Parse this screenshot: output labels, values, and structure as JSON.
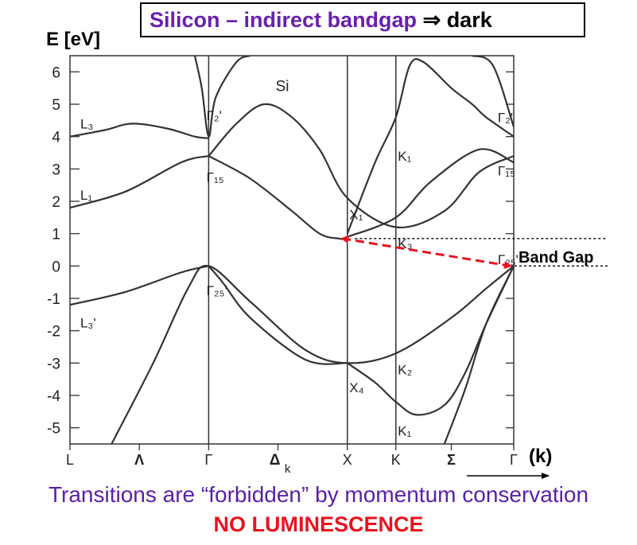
{
  "title": {
    "part1": "Silicon – indirect bandgap ",
    "arrow": "⇒",
    "part2": " dark"
  },
  "caption": {
    "line1": "Transitions are “forbidden” by momentum conservation",
    "line2": "NO LUMINESCENCE"
  },
  "colors": {
    "title_purple": "#6a1fb0",
    "caption_purple": "#5a1fa8",
    "caption_red": "#e8141e",
    "arrow_red": "#e8141e",
    "curves": "#333333"
  },
  "chart_data": {
    "type": "line",
    "title": "",
    "material_label": "Si",
    "ylabel": "E [eV]",
    "xlabel": "(k)",
    "ylim": [
      -5.5,
      6.5
    ],
    "y_ticks": [
      6,
      5,
      4,
      3,
      2,
      1,
      0,
      -1,
      -2,
      -3,
      -4,
      -5
    ],
    "k_points": [
      "L",
      "Λ",
      "Γ",
      "Δk",
      "X",
      "K",
      "Σ",
      "Γ"
    ],
    "k_positions": [
      0,
      0.5,
      1.0,
      1.5,
      2.0,
      2.35,
      2.75,
      3.2
    ],
    "symmetry_lines_at": [
      1.0,
      2.0,
      2.35
    ],
    "series": [
      {
        "points": [
          [
            0,
            4.0
          ],
          [
            0.25,
            4.2
          ],
          [
            0.45,
            4.4
          ],
          [
            0.7,
            4.25
          ],
          [
            0.9,
            4.0
          ],
          [
            1.0,
            3.95
          ]
        ]
      },
      {
        "points": [
          [
            0,
            1.8
          ],
          [
            0.4,
            2.3
          ],
          [
            0.8,
            3.2
          ],
          [
            1.0,
            3.4
          ]
        ]
      },
      {
        "points": [
          [
            0,
            -1.2
          ],
          [
            0.4,
            -0.8
          ],
          [
            0.8,
            -0.2
          ],
          [
            1.0,
            0.0
          ]
        ]
      },
      {
        "points": [
          [
            0.3,
            -5.5
          ],
          [
            0.6,
            -3.0
          ],
          [
            0.85,
            -0.7
          ],
          [
            1.0,
            0.0
          ],
          [
            1.3,
            -1.1
          ],
          [
            1.7,
            -2.6
          ],
          [
            2.0,
            -3.0
          ],
          [
            2.35,
            -2.7
          ],
          [
            2.75,
            -1.6
          ],
          [
            3.0,
            -0.7
          ],
          [
            3.2,
            0.0
          ]
        ]
      },
      {
        "points": [
          [
            1.0,
            0.0
          ],
          [
            1.1,
            -0.5
          ],
          [
            1.3,
            -1.6
          ],
          [
            1.7,
            -2.9
          ],
          [
            2.0,
            -3.0
          ]
        ]
      },
      {
        "points": [
          [
            1.0,
            3.4
          ],
          [
            1.3,
            2.7
          ],
          [
            1.6,
            1.7
          ],
          [
            1.8,
            1.0
          ],
          [
            1.94,
            0.85
          ],
          [
            2.0,
            0.9
          ],
          [
            2.35,
            1.5
          ],
          [
            2.6,
            2.6
          ],
          [
            2.95,
            3.6
          ],
          [
            3.2,
            3.2
          ]
        ]
      },
      {
        "points": [
          [
            1.0,
            3.4
          ],
          [
            1.2,
            4.4
          ],
          [
            1.4,
            5.0
          ],
          [
            1.6,
            4.6
          ],
          [
            1.8,
            3.6
          ],
          [
            2.0,
            2.1
          ],
          [
            2.35,
            1.2
          ],
          [
            2.7,
            1.7
          ],
          [
            2.95,
            2.9
          ],
          [
            3.2,
            3.4
          ]
        ]
      },
      {
        "points": [
          [
            0.9,
            6.5
          ],
          [
            0.95,
            5.5
          ],
          [
            1.0,
            4.0
          ],
          [
            1.05,
            5.2
          ],
          [
            1.2,
            6.3
          ],
          [
            1.3,
            6.5
          ]
        ]
      },
      {
        "points": [
          [
            2.0,
            1.0
          ],
          [
            2.2,
            3.2
          ],
          [
            2.35,
            4.6
          ],
          [
            2.45,
            6.2
          ],
          [
            2.55,
            6.3
          ],
          [
            2.75,
            5.5
          ],
          [
            2.9,
            5.0
          ],
          [
            3.0,
            4.6
          ],
          [
            3.2,
            4.0
          ]
        ]
      },
      {
        "points": [
          [
            2.9,
            6.5
          ],
          [
            3.05,
            6.2
          ],
          [
            3.2,
            4.3
          ]
        ]
      },
      {
        "points": [
          [
            2.0,
            -3.0
          ],
          [
            2.2,
            -3.6
          ],
          [
            2.35,
            -4.2
          ],
          [
            2.5,
            -4.6
          ],
          [
            2.7,
            -4.3
          ],
          [
            2.85,
            -3.3
          ],
          [
            3.0,
            -1.8
          ],
          [
            3.2,
            0.0
          ]
        ]
      },
      {
        "points": [
          [
            2.7,
            -5.5
          ],
          [
            2.85,
            -3.8
          ],
          [
            3.0,
            -1.8
          ],
          [
            3.2,
            0.0
          ]
        ]
      }
    ],
    "point_labels": [
      {
        "text": "L₃",
        "k": 0.04,
        "E": 4.4
      },
      {
        "text": "L₁",
        "k": 0.04,
        "E": 2.2
      },
      {
        "text": "L₃'",
        "k": 0.04,
        "E": -1.75
      },
      {
        "text": "Γ₂'",
        "k": 0.95,
        "E": 4.65
      },
      {
        "text": "Γ₁₅",
        "k": 0.95,
        "E": 2.75
      },
      {
        "text": "Γ₂₅'",
        "k": 0.95,
        "E": -0.75
      },
      {
        "text": "X₁",
        "k": 1.98,
        "E": 1.6
      },
      {
        "text": "X₄",
        "k": 1.98,
        "E": -3.75
      },
      {
        "text": "K₁",
        "k": 2.33,
        "E": 3.4
      },
      {
        "text": "K₃",
        "k": 2.33,
        "E": 0.7
      },
      {
        "text": "K₂",
        "k": 2.33,
        "E": -3.2
      },
      {
        "text": "K₁",
        "k": 2.33,
        "E": -5.1
      },
      {
        "text": "Γ₂'",
        "k": 3.05,
        "E": 4.6
      },
      {
        "text": "Γ₁₅",
        "k": 3.05,
        "E": 2.95
      },
      {
        "text": "Γ₂₅'",
        "k": 3.05,
        "E": 0.2
      }
    ],
    "annotations": {
      "band_gap_label": "Band Gap",
      "transition_from": [
        1.94,
        0.85
      ],
      "transition_to": [
        3.2,
        0.0
      ],
      "gap_lines": [
        0.85,
        0.0
      ]
    }
  }
}
